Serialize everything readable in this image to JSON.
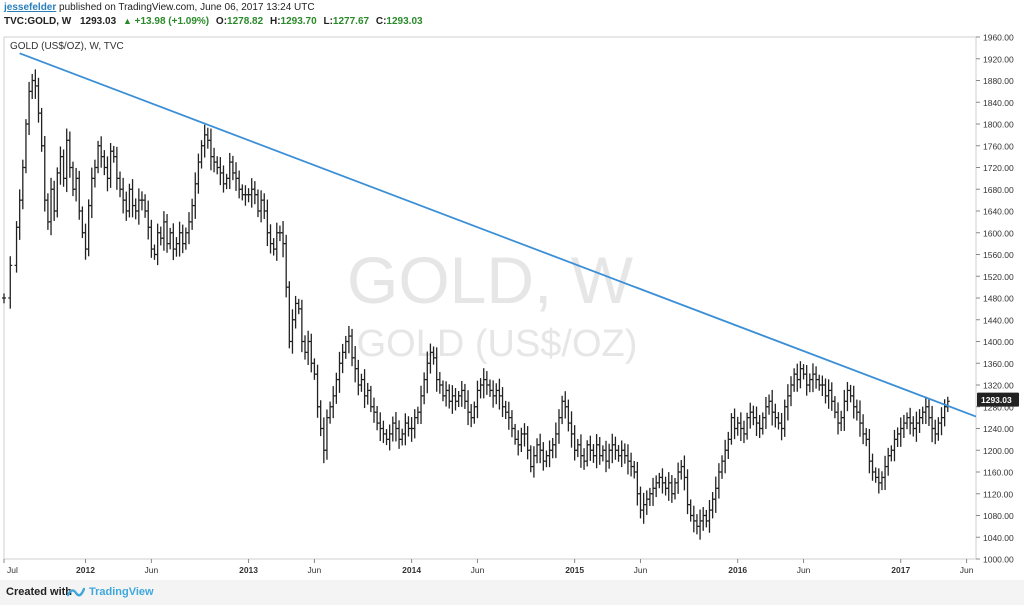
{
  "header": {
    "author": "jessefelder",
    "published": "published on TradingView.com, June 06, 2017 13:24 UTC",
    "symbol": "TVC:GOLD, W",
    "last": "1293.03",
    "change": "+13.98 (+1.09%)",
    "open_label": "O:",
    "open": "1278.82",
    "high_label": "H:",
    "high": "1293.70",
    "low_label": "L:",
    "low": "1277.67",
    "close_label": "C:",
    "close": "1293.03"
  },
  "chart_data": {
    "type": "ohlc",
    "legend_label": "GOLD (US$/OZ), W, TVC",
    "watermark_symbol": "GOLD, W",
    "watermark_name": "GOLD (US$/OZ)",
    "last_price_label": "1293.03",
    "ylim": [
      1000,
      1960
    ],
    "y_ticks": [
      "1960.00",
      "1920.00",
      "1880.00",
      "1840.00",
      "1800.00",
      "1760.00",
      "1720.00",
      "1680.00",
      "1640.00",
      "1600.00",
      "1560.00",
      "1520.00",
      "1480.00",
      "1440.00",
      "1400.00",
      "1360.00",
      "1320.00",
      "1280.00",
      "1240.00",
      "1200.00",
      "1160.00",
      "1120.00",
      "1080.00",
      "1040.00",
      "1000.00"
    ],
    "x_ticks": [
      {
        "label": "Jul",
        "week": 0
      },
      {
        "label": "2012",
        "week": 26
      },
      {
        "label": "Jun",
        "week": 47
      },
      {
        "label": "2013",
        "week": 78
      },
      {
        "label": "Jun",
        "week": 99
      },
      {
        "label": "2014",
        "week": 130
      },
      {
        "label": "Jun",
        "week": 151
      },
      {
        "label": "2015",
        "week": 182
      },
      {
        "label": "Jun",
        "week": 203
      },
      {
        "label": "2016",
        "week": 234
      },
      {
        "label": "Jun",
        "week": 255
      },
      {
        "label": "2017",
        "week": 286
      },
      {
        "label": "Jun",
        "week": 307
      }
    ],
    "week_range": [
      0,
      310
    ],
    "series": [
      {
        "type": "ohlc",
        "color": "#222222",
        "keyframes": [
          [
            0,
            1480
          ],
          [
            2,
            1540
          ],
          [
            4,
            1610
          ],
          [
            5,
            1660
          ],
          [
            6,
            1720
          ],
          [
            7,
            1800
          ],
          [
            8,
            1860
          ],
          [
            9,
            1880
          ],
          [
            10,
            1870
          ],
          [
            11,
            1820
          ],
          [
            12,
            1760
          ],
          [
            13,
            1660
          ],
          [
            14,
            1620
          ],
          [
            15,
            1680
          ],
          [
            16,
            1640
          ],
          [
            17,
            1710
          ],
          [
            18,
            1740
          ],
          [
            19,
            1700
          ],
          [
            20,
            1770
          ],
          [
            21,
            1720
          ],
          [
            22,
            1680
          ],
          [
            23,
            1700
          ],
          [
            24,
            1640
          ],
          [
            25,
            1600
          ],
          [
            26,
            1570
          ],
          [
            27,
            1650
          ],
          [
            28,
            1700
          ],
          [
            29,
            1720
          ],
          [
            30,
            1760
          ],
          [
            31,
            1740
          ],
          [
            32,
            1720
          ],
          [
            33,
            1700
          ],
          [
            34,
            1750
          ],
          [
            35,
            1740
          ],
          [
            36,
            1700
          ],
          [
            37,
            1680
          ],
          [
            38,
            1660
          ],
          [
            39,
            1640
          ],
          [
            40,
            1680
          ],
          [
            41,
            1650
          ],
          [
            42,
            1640
          ],
          [
            43,
            1660
          ],
          [
            44,
            1660
          ],
          [
            45,
            1640
          ],
          [
            46,
            1610
          ],
          [
            47,
            1570
          ],
          [
            48,
            1560
          ],
          [
            49,
            1600
          ],
          [
            50,
            1590
          ],
          [
            51,
            1620
          ],
          [
            52,
            1580
          ],
          [
            53,
            1600
          ],
          [
            54,
            1570
          ],
          [
            55,
            1580
          ],
          [
            56,
            1600
          ],
          [
            57,
            1580
          ],
          [
            58,
            1600
          ],
          [
            59,
            1620
          ],
          [
            60,
            1650
          ],
          [
            61,
            1690
          ],
          [
            62,
            1730
          ],
          [
            63,
            1760
          ],
          [
            64,
            1780
          ],
          [
            65,
            1770
          ],
          [
            66,
            1740
          ],
          [
            67,
            1730
          ],
          [
            68,
            1720
          ],
          [
            69,
            1710
          ],
          [
            70,
            1690
          ],
          [
            71,
            1700
          ],
          [
            72,
            1730
          ],
          [
            73,
            1710
          ],
          [
            74,
            1700
          ],
          [
            75,
            1680
          ],
          [
            76,
            1670
          ],
          [
            77,
            1670
          ],
          [
            78,
            1670
          ],
          [
            79,
            1680
          ],
          [
            80,
            1670
          ],
          [
            81,
            1640
          ],
          [
            82,
            1660
          ],
          [
            83,
            1640
          ],
          [
            84,
            1600
          ],
          [
            85,
            1580
          ],
          [
            86,
            1570
          ],
          [
            87,
            1600
          ],
          [
            88,
            1600
          ],
          [
            89,
            1580
          ],
          [
            90,
            1500
          ],
          [
            91,
            1400
          ],
          [
            92,
            1440
          ],
          [
            93,
            1470
          ],
          [
            94,
            1460
          ],
          [
            95,
            1400
          ],
          [
            96,
            1380
          ],
          [
            97,
            1400
          ],
          [
            98,
            1360
          ],
          [
            99,
            1340
          ],
          [
            100,
            1280
          ],
          [
            101,
            1240
          ],
          [
            102,
            1200
          ],
          [
            103,
            1260
          ],
          [
            104,
            1280
          ],
          [
            105,
            1300
          ],
          [
            106,
            1330
          ],
          [
            107,
            1360
          ],
          [
            108,
            1380
          ],
          [
            109,
            1400
          ],
          [
            110,
            1410
          ],
          [
            111,
            1370
          ],
          [
            112,
            1350
          ],
          [
            113,
            1320
          ],
          [
            114,
            1330
          ],
          [
            115,
            1300
          ],
          [
            116,
            1310
          ],
          [
            117,
            1280
          ],
          [
            118,
            1270
          ],
          [
            119,
            1250
          ],
          [
            120,
            1240
          ],
          [
            121,
            1230
          ],
          [
            122,
            1220
          ],
          [
            123,
            1230
          ],
          [
            124,
            1250
          ],
          [
            125,
            1240
          ],
          [
            126,
            1220
          ],
          [
            127,
            1230
          ],
          [
            128,
            1250
          ],
          [
            129,
            1240
          ],
          [
            130,
            1240
          ],
          [
            131,
            1260
          ],
          [
            132,
            1270
          ],
          [
            133,
            1300
          ],
          [
            134,
            1330
          ],
          [
            135,
            1360
          ],
          [
            136,
            1380
          ],
          [
            137,
            1370
          ],
          [
            138,
            1330
          ],
          [
            139,
            1320
          ],
          [
            140,
            1300
          ],
          [
            141,
            1310
          ],
          [
            142,
            1290
          ],
          [
            143,
            1300
          ],
          [
            144,
            1290
          ],
          [
            145,
            1300
          ],
          [
            146,
            1310
          ],
          [
            147,
            1290
          ],
          [
            148,
            1270
          ],
          [
            149,
            1260
          ],
          [
            150,
            1280
          ],
          [
            151,
            1310
          ],
          [
            152,
            1320
          ],
          [
            153,
            1330
          ],
          [
            154,
            1320
          ],
          [
            155,
            1310
          ],
          [
            156,
            1300
          ],
          [
            157,
            1310
          ],
          [
            158,
            1300
          ],
          [
            159,
            1280
          ],
          [
            160,
            1270
          ],
          [
            161,
            1260
          ],
          [
            162,
            1240
          ],
          [
            163,
            1220
          ],
          [
            164,
            1210
          ],
          [
            165,
            1230
          ],
          [
            166,
            1230
          ],
          [
            167,
            1200
          ],
          [
            168,
            1170
          ],
          [
            169,
            1190
          ],
          [
            170,
            1210
          ],
          [
            171,
            1200
          ],
          [
            172,
            1180
          ],
          [
            173,
            1190
          ],
          [
            174,
            1200
          ],
          [
            175,
            1210
          ],
          [
            176,
            1230
          ],
          [
            177,
            1260
          ],
          [
            178,
            1290
          ],
          [
            179,
            1280
          ],
          [
            180,
            1250
          ],
          [
            181,
            1230
          ],
          [
            182,
            1200
          ],
          [
            183,
            1210
          ],
          [
            184,
            1190
          ],
          [
            185,
            1180
          ],
          [
            186,
            1210
          ],
          [
            187,
            1200
          ],
          [
            188,
            1190
          ],
          [
            189,
            1210
          ],
          [
            190,
            1190
          ],
          [
            191,
            1200
          ],
          [
            192,
            1180
          ],
          [
            193,
            1200
          ],
          [
            194,
            1210
          ],
          [
            195,
            1200
          ],
          [
            196,
            1190
          ],
          [
            197,
            1200
          ],
          [
            198,
            1190
          ],
          [
            199,
            1180
          ],
          [
            200,
            1170
          ],
          [
            201,
            1160
          ],
          [
            202,
            1120
          ],
          [
            203,
            1090
          ],
          [
            204,
            1100
          ],
          [
            205,
            1110
          ],
          [
            206,
            1120
          ],
          [
            207,
            1130
          ],
          [
            208,
            1140
          ],
          [
            209,
            1150
          ],
          [
            210,
            1140
          ],
          [
            211,
            1130
          ],
          [
            212,
            1140
          ],
          [
            213,
            1120
          ],
          [
            214,
            1140
          ],
          [
            215,
            1160
          ],
          [
            216,
            1170
          ],
          [
            217,
            1150
          ],
          [
            218,
            1100
          ],
          [
            219,
            1080
          ],
          [
            220,
            1070
          ],
          [
            221,
            1060
          ],
          [
            222,
            1070
          ],
          [
            223,
            1080
          ],
          [
            224,
            1070
          ],
          [
            225,
            1090
          ],
          [
            226,
            1110
          ],
          [
            227,
            1130
          ],
          [
            228,
            1160
          ],
          [
            229,
            1180
          ],
          [
            230,
            1200
          ],
          [
            231,
            1220
          ],
          [
            232,
            1260
          ],
          [
            233,
            1240
          ],
          [
            234,
            1250
          ],
          [
            235,
            1240
          ],
          [
            236,
            1230
          ],
          [
            237,
            1260
          ],
          [
            238,
            1270
          ],
          [
            239,
            1260
          ],
          [
            240,
            1250
          ],
          [
            241,
            1240
          ],
          [
            242,
            1260
          ],
          [
            243,
            1280
          ],
          [
            244,
            1290
          ],
          [
            245,
            1270
          ],
          [
            246,
            1260
          ],
          [
            247,
            1250
          ],
          [
            248,
            1240
          ],
          [
            249,
            1280
          ],
          [
            250,
            1300
          ],
          [
            251,
            1320
          ],
          [
            252,
            1340
          ],
          [
            253,
            1330
          ],
          [
            254,
            1350
          ],
          [
            255,
            1340
          ],
          [
            256,
            1320
          ],
          [
            257,
            1330
          ],
          [
            258,
            1340
          ],
          [
            259,
            1330
          ],
          [
            260,
            1320
          ],
          [
            261,
            1320
          ],
          [
            262,
            1300
          ],
          [
            263,
            1310
          ],
          [
            264,
            1290
          ],
          [
            265,
            1270
          ],
          [
            266,
            1250
          ],
          [
            267,
            1260
          ],
          [
            268,
            1290
          ],
          [
            269,
            1310
          ],
          [
            270,
            1300
          ],
          [
            271,
            1280
          ],
          [
            272,
            1270
          ],
          [
            273,
            1250
          ],
          [
            274,
            1230
          ],
          [
            275,
            1220
          ],
          [
            276,
            1180
          ],
          [
            277,
            1160
          ],
          [
            278,
            1150
          ],
          [
            279,
            1140
          ],
          [
            280,
            1150
          ],
          [
            281,
            1170
          ],
          [
            282,
            1190
          ],
          [
            283,
            1200
          ],
          [
            284,
            1220
          ],
          [
            285,
            1230
          ],
          [
            286,
            1240
          ],
          [
            287,
            1250
          ],
          [
            288,
            1260
          ],
          [
            289,
            1250
          ],
          [
            290,
            1240
          ],
          [
            291,
            1250
          ],
          [
            292,
            1260
          ],
          [
            293,
            1270
          ],
          [
            294,
            1280
          ],
          [
            295,
            1260
          ],
          [
            296,
            1240
          ],
          [
            297,
            1230
          ],
          [
            298,
            1250
          ],
          [
            299,
            1260
          ],
          [
            300,
            1280
          ],
          [
            301,
            1290
          ]
        ]
      }
    ],
    "trendline": {
      "color": "#3b8fd6",
      "points": [
        [
          5,
          1930
        ],
        [
          310,
          1262
        ]
      ]
    }
  },
  "footer": {
    "created_with": "Created with",
    "brand": "TradingView"
  }
}
